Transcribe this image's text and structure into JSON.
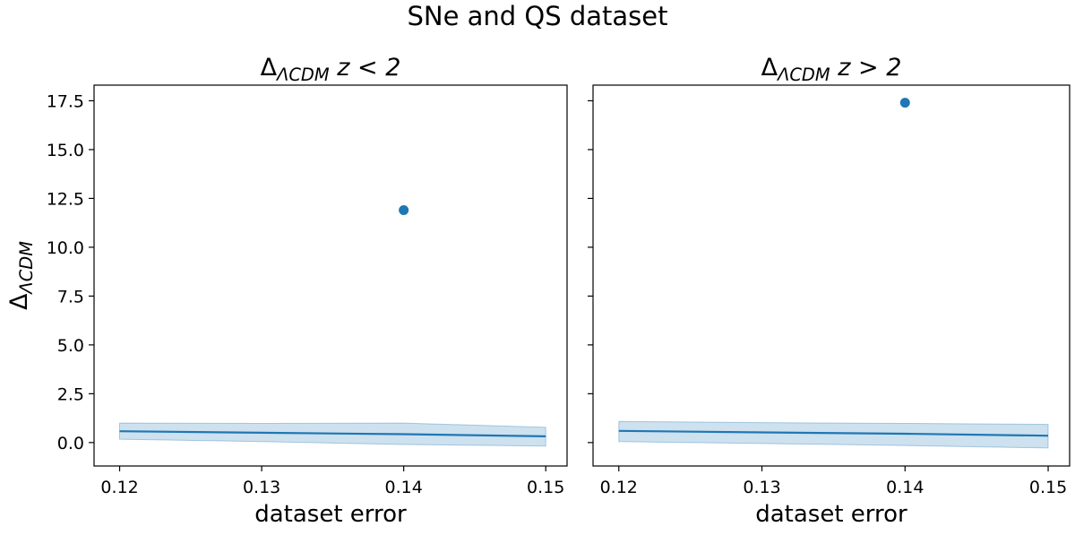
{
  "figure": {
    "title": "SNe and QS dataset"
  },
  "chart_data": [
    {
      "type": "line",
      "title": "Δ_ΛCDM z < 2",
      "title_parts": {
        "main": "Δ",
        "sub": "ΛCDM",
        "rest": " z < 2"
      },
      "xlabel": "dataset error",
      "ylabel": "Δ_ΛCDM",
      "ylabel_parts": {
        "main": "Δ",
        "sub": "ΛCDM"
      },
      "xlim": [
        0.1182,
        0.1515
      ],
      "ylim": [
        -1.2,
        18.3
      ],
      "x_ticks": [
        0.12,
        0.13,
        0.14,
        0.15
      ],
      "x_tick_labels": [
        "0.12",
        "0.13",
        "0.14",
        "0.15"
      ],
      "y_ticks": [
        0.0,
        2.5,
        5.0,
        7.5,
        10.0,
        12.5,
        15.0,
        17.5
      ],
      "y_tick_labels": [
        "0.0",
        "2.5",
        "5.0",
        "7.5",
        "10.0",
        "12.5",
        "15.0",
        "17.5"
      ],
      "grid": false,
      "line": {
        "x": [
          0.12,
          0.13,
          0.14,
          0.15
        ],
        "y": [
          0.58,
          0.5,
          0.43,
          0.32
        ]
      },
      "band": {
        "x": [
          0.12,
          0.13,
          0.14,
          0.15
        ],
        "lower": [
          0.17,
          0.05,
          -0.1,
          -0.18
        ],
        "upper": [
          1.0,
          0.98,
          1.0,
          0.78
        ]
      },
      "points": [
        {
          "x": 0.14,
          "y": 11.9
        }
      ]
    },
    {
      "type": "line",
      "title": "Δ_ΛCDM z > 2",
      "title_parts": {
        "main": "Δ",
        "sub": "ΛCDM",
        "rest": " z > 2"
      },
      "xlabel": "dataset error",
      "xlim": [
        0.1182,
        0.1515
      ],
      "ylim": [
        -1.2,
        18.3
      ],
      "x_ticks": [
        0.12,
        0.13,
        0.14,
        0.15
      ],
      "x_tick_labels": [
        "0.12",
        "0.13",
        "0.14",
        "0.15"
      ],
      "y_ticks": [
        0.0,
        2.5,
        5.0,
        7.5,
        10.0,
        12.5,
        15.0,
        17.5
      ],
      "y_tick_labels": [
        "",
        "",
        "",
        "",
        "",
        "",
        "",
        ""
      ],
      "grid": false,
      "line": {
        "x": [
          0.12,
          0.13,
          0.14,
          0.15
        ],
        "y": [
          0.6,
          0.52,
          0.45,
          0.35
        ]
      },
      "band": {
        "x": [
          0.12,
          0.13,
          0.14,
          0.15
        ],
        "lower": [
          0.05,
          -0.05,
          -0.15,
          -0.28
        ],
        "upper": [
          1.08,
          1.02,
          0.98,
          0.93
        ]
      },
      "points": [
        {
          "x": 0.14,
          "y": 17.4
        }
      ]
    }
  ],
  "colors": {
    "line": "#1f77b4",
    "band": "#1f77b4",
    "point": "#1f77b4",
    "axes": "#000000"
  }
}
